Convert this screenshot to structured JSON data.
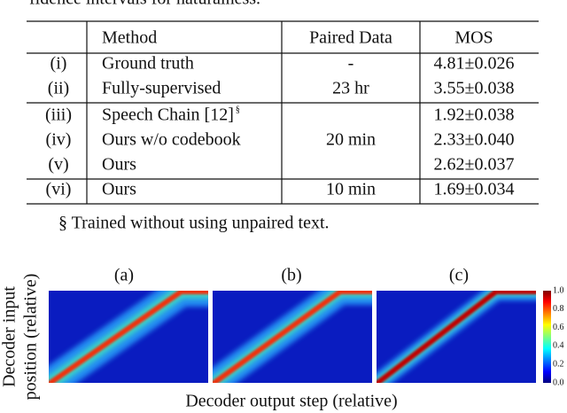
{
  "caption_fragment": "fidence intervals for naturalness.",
  "table": {
    "headers": [
      "Method",
      "Paired Data",
      "MOS"
    ],
    "rows": [
      {
        "id": "(i)",
        "method": "Ground truth",
        "mos": "4.81±0.026"
      },
      {
        "id": "(ii)",
        "method": "Fully-supervised",
        "mos": "3.55±0.038"
      },
      {
        "id": "(iii)",
        "method": "Speech Chain [12]",
        "note": "§",
        "mos": "1.92±0.038"
      },
      {
        "id": "(iv)",
        "method": "Ours w/o codebook",
        "mos": "2.33±0.040"
      },
      {
        "id": "(v)",
        "method": "Ours",
        "mos": "2.62±0.037"
      },
      {
        "id": "(vi)",
        "method": "Ours",
        "mos": "1.69±0.034"
      }
    ],
    "paired_data": [
      "-",
      "23 hr",
      "20 min",
      "10 min"
    ]
  },
  "footnote": "§ Trained without using unpaired text.",
  "figure": {
    "panels": [
      "(a)",
      "(b)",
      "(c)"
    ],
    "y_label": [
      "Decoder input",
      "position (relative)"
    ],
    "x_label": "Decoder output step (relative)",
    "colorbar_ticks": [
      "1.0",
      "0.8",
      "0.6",
      "0.4",
      "0.2",
      "0.0"
    ]
  }
}
